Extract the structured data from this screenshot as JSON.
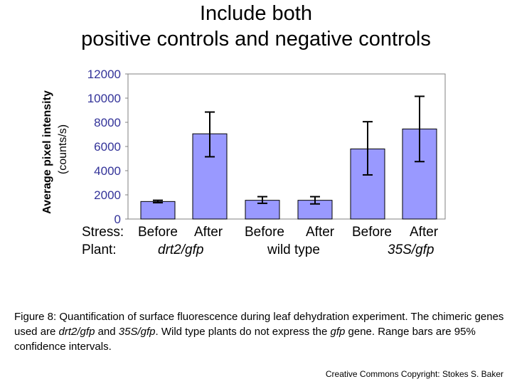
{
  "title_line1": "Include both",
  "title_line2": "positive controls and negative controls",
  "chart_data": {
    "type": "bar",
    "ylabel_main": "Average pixel intensity",
    "ylabel_unit": "(counts/s)",
    "ylim": [
      0,
      12000
    ],
    "yticks": [
      "0",
      "2000",
      "4000",
      "6000",
      "8000",
      "10000",
      "12000"
    ],
    "bar_color": "#9999ff",
    "tick_color": "#333399",
    "categories": [
      "drt2/gfp Before",
      "drt2/gfp After",
      "wild type Before",
      "wild type After",
      "35S/gfp Before",
      "35S/gfp After"
    ],
    "values": [
      1450,
      7050,
      1550,
      1550,
      5800,
      7450
    ],
    "err_low": [
      1350,
      5150,
      1300,
      1250,
      3650,
      4750
    ],
    "err_high": [
      1550,
      8850,
      1850,
      1850,
      8050,
      10150
    ]
  },
  "stress_label": "Stress:",
  "plant_label": "Plant:",
  "groups": [
    {
      "before": "Before",
      "after": "After",
      "plant": "drt2/gfp"
    },
    {
      "before": "Before",
      "after": "After",
      "plant": "wild type"
    },
    {
      "before": "Before",
      "after": "After",
      "plant": "35S/gfp"
    }
  ],
  "caption": {
    "p1": "Figure 8: Quantification of surface fluorescence during leaf dehydration experiment. The chimeric genes used are ",
    "i1": "drt2/gfp",
    "p2": " and ",
    "i2": "35S/gfp",
    "p3": ".  Wild type plants do not express the ",
    "i3": "gfp",
    "p4": " gene.  Range bars are 95% confidence intervals."
  },
  "credit": "Creative Commons Copyright: Stokes S. Baker"
}
